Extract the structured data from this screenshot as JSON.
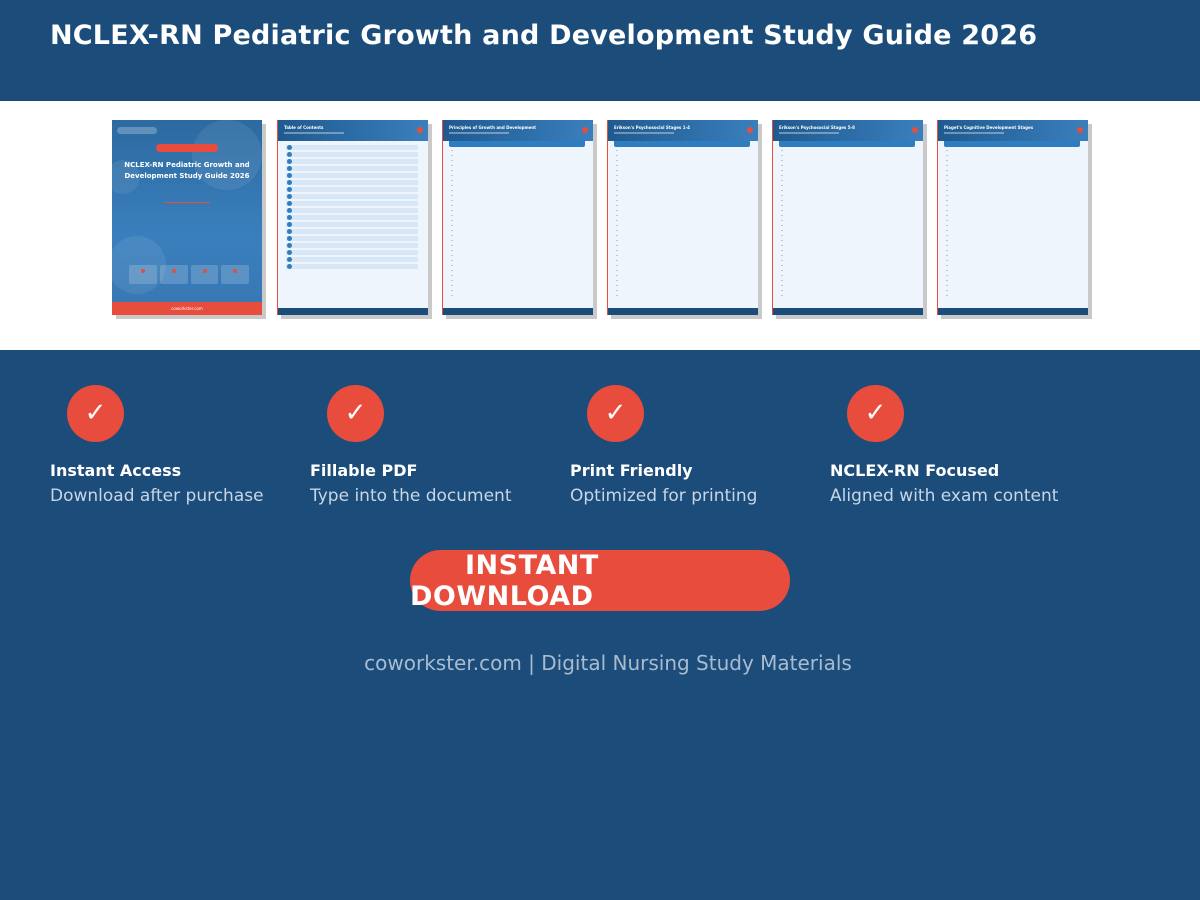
{
  "header": {
    "title": "NCLEX-RN Pediatric Growth and Development Study Guide 2026"
  },
  "previews": {
    "cover": {
      "title": "NCLEX-RN Pediatric Growth and Development Study Guide 2026",
      "footer": "coworkster.com"
    },
    "pages": [
      {
        "title": "Table of Contents"
      },
      {
        "title": "Principles of Growth and Development"
      },
      {
        "title": "Erikson's Psychosocial Stages 1-4"
      },
      {
        "title": "Erikson's Psychosocial Stages 5-8"
      },
      {
        "title": "Piaget's Cognitive Development Stages"
      }
    ]
  },
  "features": [
    {
      "title": "Instant Access",
      "desc": "Download after purchase"
    },
    {
      "title": "Fillable PDF",
      "desc": "Type into the document"
    },
    {
      "title": "Print Friendly",
      "desc": "Optimized for printing"
    },
    {
      "title": "NCLEX-RN Focused",
      "desc": "Aligned with exam content"
    }
  ],
  "cta": {
    "label": "INSTANT DOWNLOAD"
  },
  "footer": {
    "text": "coworkster.com | Digital Nursing Study Materials"
  },
  "icons": {
    "feature_check": "check-icon"
  },
  "colors": {
    "brand": "#1b4c7a",
    "accent": "#e84c3d"
  }
}
